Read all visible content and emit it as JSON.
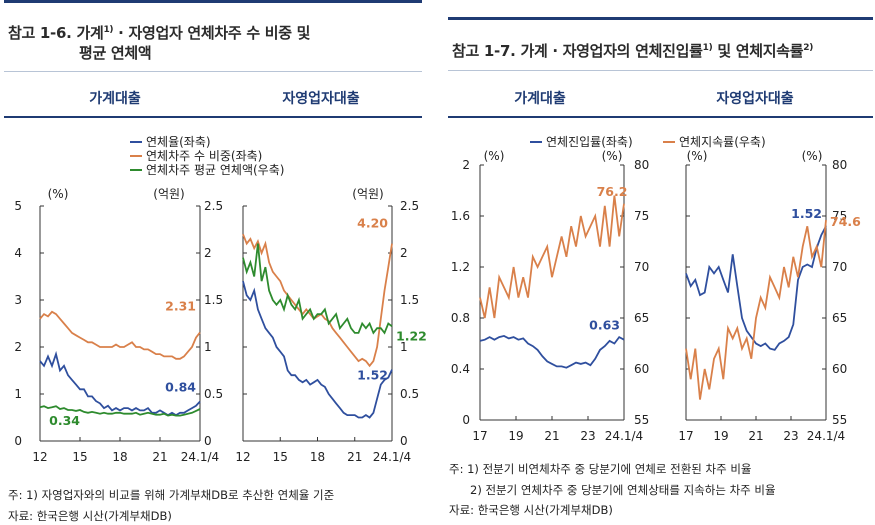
{
  "left": {
    "title_line1": "참고 1-6. 가계",
    "title_sup1": "1)",
    "title_rest": " · 자영업자 연체차주 수 비중 및",
    "title_line2": "평균 연체액",
    "sub_household": "가계대출",
    "sub_selfemployed": "자영업자대출",
    "legend": [
      "연체율(좌축)",
      "연체차주 수 비중(좌축)",
      "연체차주 평균 연체액(우축)"
    ],
    "unit_left": "(%)",
    "unit_right": "(억원)",
    "note1": "주: 1) 자영업자와의 비교를 위해 가계부채DB로 추산한 연체율 기준",
    "source": "자료: 한국은행 시산(가계부채DB)"
  },
  "right": {
    "title_pre": "참고 1-7. 가계 · 자영업자의 연체진입률",
    "title_sup1": "1)",
    "title_mid": " 및 연체지속률",
    "title_sup2": "2)",
    "sub_household": "가계대출",
    "sub_selfemployed": "자영업자대출",
    "legend": [
      "연체진입률(좌축)",
      "연체지속률(우축)"
    ],
    "unit_left": "(%)",
    "unit_right": "(%)",
    "note1": "주: 1) 전분기 비연체차주 중 당분기에 연체로 전환된 차주 비율",
    "note2": "2) 전분기 연체차주 중 당분기에 연체상태를 지속하는 차주 비율",
    "source": "자료: 한국은행 시산(가계부채DB)"
  },
  "colors": {
    "blue": "#2f4f9e",
    "orange": "#d9804a",
    "green": "#2e8b2e",
    "navy": "#1f3b73"
  },
  "chart_data": [
    {
      "type": "line",
      "title": "가계대출",
      "x_ticks": [
        "12",
        "15",
        "18",
        "21",
        "24.1/4"
      ],
      "ylim_left": [
        0,
        5
      ],
      "ylim_right": [
        0,
        2.5
      ],
      "series": [
        {
          "name": "연체율(좌축)",
          "axis": "left",
          "color": "#2f4f9e",
          "values": [
            1.7,
            1.6,
            1.8,
            1.6,
            1.85,
            1.5,
            1.6,
            1.4,
            1.3,
            1.2,
            1.1,
            1.1,
            0.95,
            0.95,
            0.85,
            0.8,
            0.7,
            0.75,
            0.65,
            0.7,
            0.65,
            0.7,
            0.7,
            0.65,
            0.7,
            0.65,
            0.65,
            0.7,
            0.6,
            0.6,
            0.65,
            0.6,
            0.55,
            0.6,
            0.55,
            0.6,
            0.6,
            0.65,
            0.7,
            0.75,
            0.84
          ],
          "end_label": "0.84"
        },
        {
          "name": "연체차주 수 비중(좌축)",
          "axis": "left",
          "color": "#d9804a",
          "values": [
            2.6,
            2.7,
            2.65,
            2.75,
            2.7,
            2.6,
            2.5,
            2.4,
            2.3,
            2.25,
            2.2,
            2.15,
            2.1,
            2.1,
            2.05,
            2.0,
            2.0,
            2.0,
            2.0,
            2.05,
            2.0,
            2.0,
            2.05,
            2.1,
            2.0,
            2.0,
            1.95,
            1.95,
            1.9,
            1.85,
            1.85,
            1.8,
            1.8,
            1.8,
            1.75,
            1.75,
            1.8,
            1.9,
            2.0,
            2.2,
            2.31
          ],
          "end_label": "2.31"
        },
        {
          "name": "연체차주 평균 연체액(우축)",
          "axis": "right",
          "color": "#2e8b2e",
          "values": [
            0.36,
            0.37,
            0.35,
            0.36,
            0.37,
            0.34,
            0.35,
            0.33,
            0.33,
            0.32,
            0.33,
            0.31,
            0.3,
            0.31,
            0.3,
            0.29,
            0.3,
            0.29,
            0.29,
            0.3,
            0.3,
            0.29,
            0.29,
            0.29,
            0.3,
            0.28,
            0.29,
            0.3,
            0.29,
            0.28,
            0.28,
            0.29,
            0.27,
            0.28,
            0.27,
            0.27,
            0.28,
            0.29,
            0.3,
            0.32,
            0.34
          ],
          "end_label": "0.34"
        }
      ]
    },
    {
      "type": "line",
      "title": "자영업자대출",
      "x_ticks": [
        "12",
        "15",
        "18",
        "21",
        "24.1/4"
      ],
      "ylim_left": [
        0,
        5
      ],
      "ylim_right": [
        0,
        2.5
      ],
      "series": [
        {
          "name": "연체율(좌축)",
          "axis": "left",
          "color": "#2f4f9e",
          "values": [
            3.4,
            3.1,
            3.0,
            3.2,
            2.8,
            2.6,
            2.4,
            2.3,
            2.2,
            2.0,
            1.9,
            1.8,
            1.5,
            1.4,
            1.4,
            1.3,
            1.25,
            1.3,
            1.2,
            1.25,
            1.3,
            1.2,
            1.15,
            1.0,
            0.9,
            0.8,
            0.7,
            0.6,
            0.55,
            0.55,
            0.55,
            0.5,
            0.5,
            0.55,
            0.5,
            0.6,
            0.9,
            1.2,
            1.3,
            1.35,
            1.52
          ],
          "end_label": "1.52"
        },
        {
          "name": "연체차주 수 비중(좌축)",
          "axis": "left",
          "color": "#d9804a",
          "values": [
            4.4,
            4.2,
            4.3,
            4.1,
            4.25,
            4.0,
            4.2,
            3.8,
            3.6,
            3.5,
            3.4,
            3.2,
            3.1,
            3.0,
            2.9,
            2.8,
            2.7,
            2.8,
            2.7,
            2.6,
            2.65,
            2.7,
            2.6,
            2.55,
            2.4,
            2.3,
            2.2,
            2.1,
            2.0,
            1.9,
            1.8,
            1.7,
            1.75,
            1.7,
            1.6,
            1.7,
            2.0,
            2.6,
            3.2,
            3.7,
            4.2
          ],
          "end_label": "4.20"
        },
        {
          "name": "연체차주 평균 연체액(우축)",
          "axis": "right",
          "color": "#2e8b2e",
          "values": [
            1.95,
            1.8,
            1.9,
            1.75,
            2.1,
            1.7,
            1.85,
            1.6,
            1.5,
            1.45,
            1.5,
            1.4,
            1.55,
            1.45,
            1.4,
            1.5,
            1.3,
            1.35,
            1.4,
            1.3,
            1.35,
            1.35,
            1.4,
            1.25,
            1.3,
            1.35,
            1.2,
            1.25,
            1.3,
            1.2,
            1.15,
            1.15,
            1.25,
            1.2,
            1.25,
            1.15,
            1.2,
            1.2,
            1.15,
            1.25,
            1.22
          ],
          "end_label": "1.22"
        }
      ]
    },
    {
      "type": "line",
      "title": "가계대출",
      "x_ticks": [
        "17",
        "19",
        "21",
        "23",
        "24.1/4"
      ],
      "ylim_left": [
        0,
        2
      ],
      "ylim_right": [
        55,
        80
      ],
      "series": [
        {
          "name": "연체진입률(좌축)",
          "axis": "left",
          "color": "#2f4f9e",
          "values": [
            0.62,
            0.63,
            0.65,
            0.63,
            0.65,
            0.66,
            0.64,
            0.65,
            0.63,
            0.64,
            0.6,
            0.58,
            0.55,
            0.5,
            0.46,
            0.44,
            0.42,
            0.42,
            0.41,
            0.43,
            0.45,
            0.44,
            0.45,
            0.43,
            0.48,
            0.55,
            0.58,
            0.62,
            0.6,
            0.65,
            0.63
          ],
          "end_label": "0.63"
        },
        {
          "name": "연체지속률(우축)",
          "axis": "right",
          "color": "#d9804a",
          "values": [
            67,
            65,
            68,
            65,
            69,
            68,
            67,
            70,
            67,
            69,
            67,
            71,
            70,
            71,
            72,
            69,
            71,
            73,
            71,
            74,
            72,
            75,
            73,
            74,
            75,
            72,
            76,
            72,
            77,
            73,
            76.2
          ],
          "end_label": "76.2"
        }
      ]
    },
    {
      "type": "line",
      "title": "자영업자대출",
      "x_ticks": [
        "17",
        "19",
        "21",
        "23",
        "24.1/4"
      ],
      "ylim_left": [
        0,
        2
      ],
      "ylim_right": [
        55,
        80
      ],
      "series": [
        {
          "name": "연체진입률(좌축)",
          "axis": "left",
          "color": "#2f4f9e",
          "values": [
            1.15,
            1.05,
            1.1,
            0.98,
            1.0,
            1.2,
            1.15,
            1.2,
            1.1,
            1.0,
            1.3,
            1.05,
            0.8,
            0.7,
            0.65,
            0.6,
            0.58,
            0.6,
            0.56,
            0.55,
            0.6,
            0.62,
            0.65,
            0.75,
            1.1,
            1.2,
            1.22,
            1.2,
            1.35,
            1.45,
            1.52
          ],
          "end_label": "1.52"
        },
        {
          "name": "연체지속률(우축)",
          "axis": "right",
          "color": "#d9804a",
          "values": [
            62,
            59,
            62,
            57,
            60,
            58,
            61,
            62,
            59,
            64,
            63,
            64,
            62,
            63,
            61,
            65,
            67,
            66,
            69,
            68,
            67,
            70,
            68,
            71,
            69,
            72,
            74,
            71,
            72,
            70,
            74.6
          ],
          "end_label": "74.6"
        }
      ]
    }
  ]
}
